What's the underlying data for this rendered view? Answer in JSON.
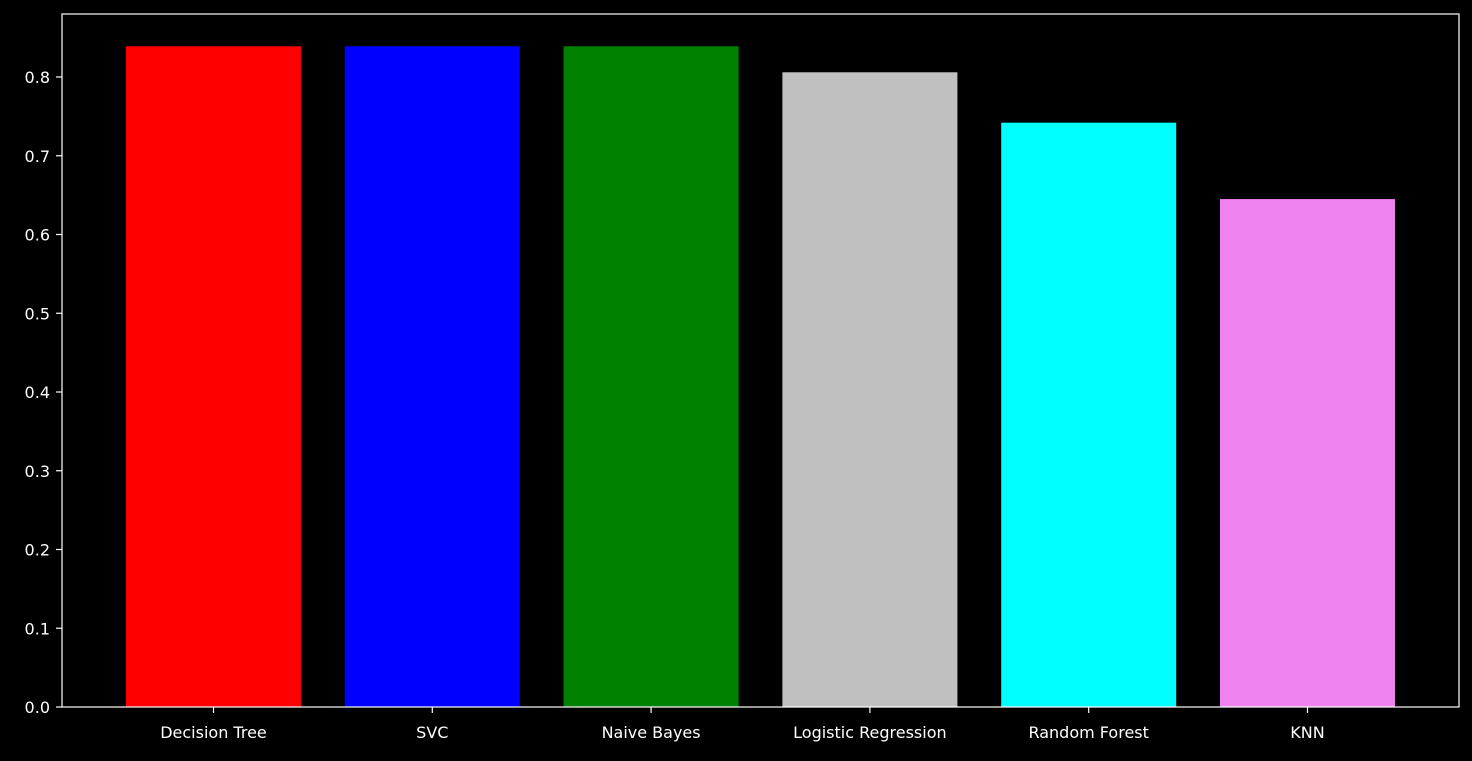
{
  "chart_data": {
    "type": "bar",
    "title": "",
    "xlabel": "",
    "ylabel": "",
    "categories": [
      "Decision Tree",
      "SVC",
      "Naive Bayes",
      "Logistic Regression",
      "Random Forest",
      "KNN"
    ],
    "values": [
      0.839,
      0.839,
      0.839,
      0.806,
      0.742,
      0.645
    ],
    "colors": [
      "#ff0000",
      "#0000ff",
      "#008000",
      "#c0c0c0",
      "#00ffff",
      "#ee82ee"
    ],
    "ylim": [
      0,
      0.88
    ],
    "yticks": [
      0.0,
      0.1,
      0.2,
      0.3,
      0.4,
      0.5,
      0.6,
      0.7,
      0.8
    ],
    "ytick_labels": [
      "0.0",
      "0.1",
      "0.2",
      "0.3",
      "0.4",
      "0.5",
      "0.6",
      "0.7",
      "0.8"
    ],
    "grid": false,
    "legend": "none",
    "background": "#000000",
    "axis_color": "#ffffff"
  }
}
